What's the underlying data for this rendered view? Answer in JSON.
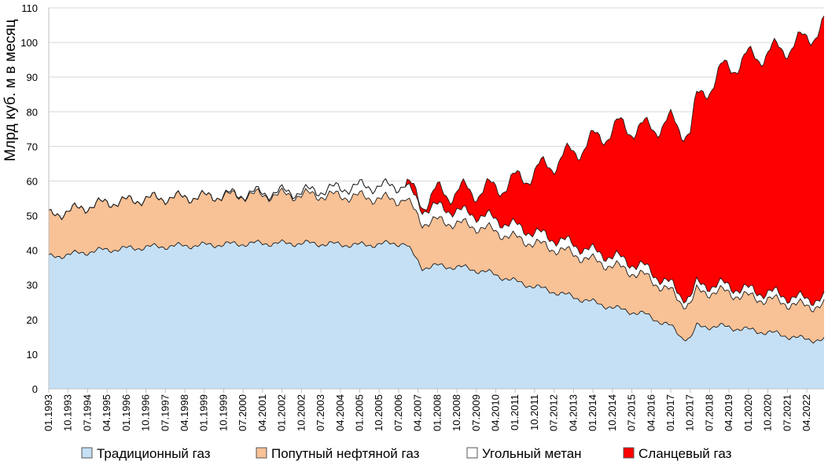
{
  "chart_data": {
    "type": "area",
    "stacked": true,
    "ylabel": "Млрд куб. м в месяц",
    "ylim": [
      0,
      110
    ],
    "yticks": [
      0,
      10,
      20,
      30,
      40,
      50,
      60,
      70,
      80,
      90,
      100,
      110
    ],
    "grid": true,
    "legend_position": "bottom",
    "x_range": [
      "01.1993",
      "12.2022"
    ],
    "xtick_labels": [
      "01.1993",
      "10.1993",
      "07.1994",
      "04.1995",
      "01.1996",
      "10.1996",
      "07.1997",
      "04.1998",
      "01.1999",
      "10.1999",
      "07.2000",
      "04.2001",
      "01.2002",
      "10.2002",
      "07.2003",
      "04.2004",
      "01.2005",
      "10.2005",
      "07.2006",
      "04.2007",
      "01.2008",
      "10.2008",
      "07.2009",
      "04.2010",
      "01.2011",
      "10.2011",
      "07.2012",
      "04.2013",
      "01.2014",
      "10.2014",
      "07.2015",
      "04.2016",
      "01.2017",
      "10.2017",
      "07.2018",
      "04.2019",
      "01.2020",
      "10.2020",
      "07.2021",
      "04.2022"
    ],
    "anchor_dates": [
      "01.1993",
      "01.1995",
      "01.1997",
      "01.1999",
      "01.2001",
      "01.2003",
      "01.2005",
      "06.2006",
      "10.2006",
      "06.2007",
      "01.2008",
      "01.2009",
      "01.2010",
      "01.2011",
      "01.2012",
      "01.2013",
      "01.2014",
      "01.2015",
      "01.2016",
      "01.2017",
      "06.2017",
      "10.2017",
      "01.2018",
      "01.2019",
      "01.2020",
      "01.2021",
      "01.2022",
      "12.2022"
    ],
    "series": [
      {
        "name": "Традиционный газ",
        "color": "#c5e0f5",
        "values": [
          38,
          40,
          41,
          41.5,
          42,
          42,
          41.5,
          42,
          42,
          35,
          35.5,
          35,
          33.5,
          31,
          29,
          27,
          25,
          23,
          21.5,
          18,
          15,
          14.5,
          18,
          18,
          17,
          16,
          14.5,
          14
        ]
      },
      {
        "name": "Попутный нефтяной газ",
        "color": "#f8c196",
        "values": [
          12,
          13.5,
          14,
          14,
          14,
          14,
          14,
          12.5,
          13,
          13,
          13,
          12.5,
          12.5,
          12.5,
          12.5,
          12.5,
          12,
          12,
          11,
          10,
          10,
          10,
          10,
          10,
          9.5,
          9.5,
          9.5,
          10
        ]
      },
      {
        "name": "Угольный метан",
        "color": "#ffffff",
        "values": [
          0,
          0,
          0,
          0,
          0.5,
          1,
          3,
          4,
          4,
          4,
          4,
          3.5,
          3.5,
          3.5,
          3,
          2.8,
          2.7,
          2.7,
          2.5,
          2,
          2,
          2,
          2,
          2,
          2,
          2,
          2,
          2
        ]
      },
      {
        "name": "Сланцевый газ",
        "color": "#ff0000",
        "values": [
          0,
          0,
          0,
          0,
          0,
          0,
          0,
          0,
          0,
          2,
          4,
          6,
          8,
          13,
          19,
          25,
          32,
          38,
          40,
          47,
          48,
          48,
          53,
          62,
          67,
          70,
          74,
          79
        ]
      }
    ]
  }
}
